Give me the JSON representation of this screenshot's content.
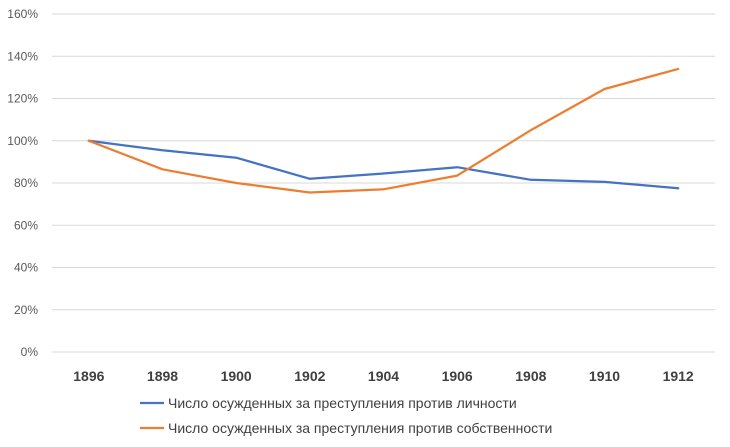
{
  "chart_data": {
    "type": "line",
    "title": "",
    "xlabel": "",
    "ylabel": "",
    "categories": [
      "1896",
      "1898",
      "1900",
      "1902",
      "1904",
      "1906",
      "1908",
      "1910",
      "1912"
    ],
    "yticks": [
      "0%",
      "20%",
      "40%",
      "60%",
      "80%",
      "100%",
      "120%",
      "140%",
      "160%"
    ],
    "ylim": [
      0,
      160
    ],
    "grid": true,
    "legend_position": "bottom",
    "series": [
      {
        "name": "Число осужденных за преступления против личности",
        "color": "#4472c4",
        "values": [
          100,
          95.5,
          92,
          82,
          84.5,
          87.5,
          81.5,
          80.5,
          77.5
        ]
      },
      {
        "name": "Число осужденных за преступления против собственности",
        "color": "#ed7d31",
        "values": [
          100,
          86.5,
          80,
          75.5,
          77,
          83.5,
          105,
          124.5,
          134
        ]
      }
    ]
  }
}
